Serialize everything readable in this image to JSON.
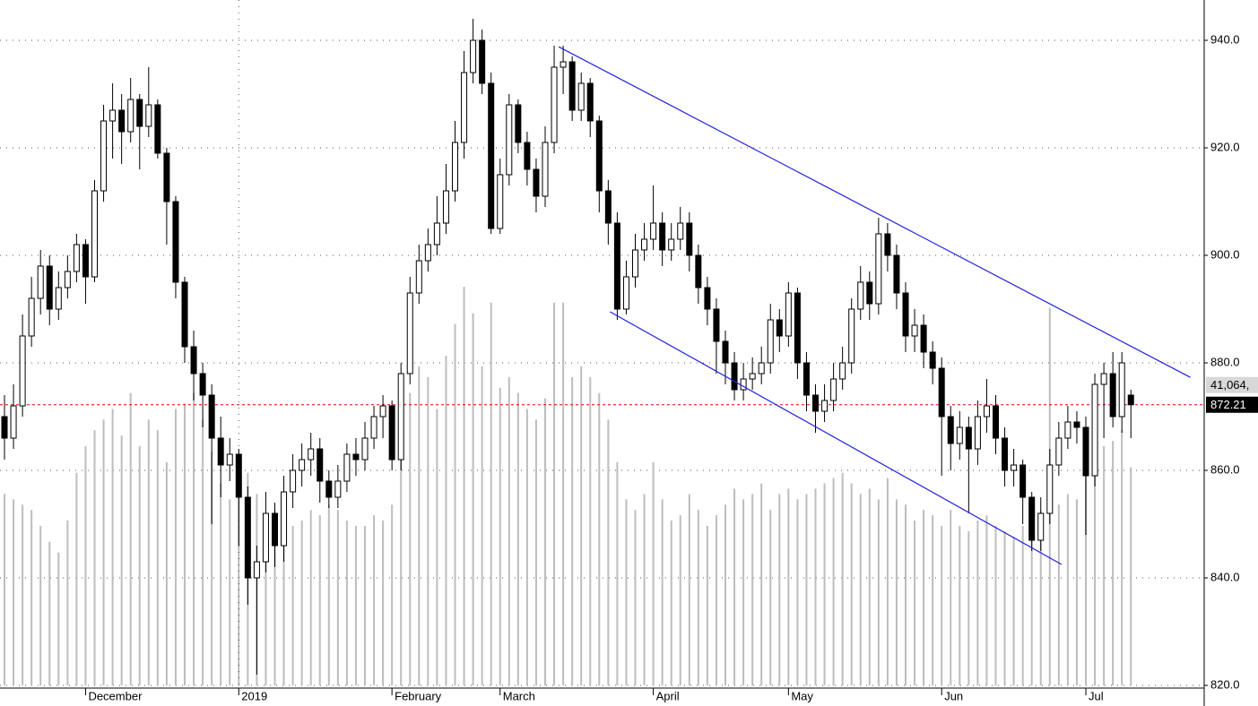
{
  "chart_data": {
    "type": "candlestick",
    "categories": [
      null,
      null,
      null,
      null,
      null,
      null,
      null,
      null,
      null,
      "December",
      null,
      null,
      null,
      null,
      null,
      null,
      null,
      null,
      null,
      null,
      null,
      null,
      null,
      null,
      null,
      null,
      "2019",
      null,
      null,
      null,
      null,
      null,
      null,
      null,
      null,
      null,
      null,
      null,
      null,
      null,
      null,
      null,
      null,
      "February",
      null,
      null,
      null,
      null,
      null,
      null,
      null,
      null,
      null,
      null,
      null,
      "March",
      null,
      null,
      null,
      null,
      null,
      null,
      null,
      null,
      null,
      null,
      null,
      null,
      null,
      null,
      null,
      null,
      "April",
      null,
      null,
      null,
      null,
      null,
      null,
      null,
      null,
      null,
      null,
      null,
      null,
      null,
      null,
      "May",
      null,
      null,
      null,
      null,
      null,
      null,
      null,
      null,
      null,
      null,
      null,
      null,
      null,
      null,
      null,
      null,
      "Jun",
      null,
      null,
      null,
      null,
      null,
      null,
      null,
      null,
      null,
      null,
      null,
      null,
      null,
      null,
      null,
      "Jul",
      null,
      null,
      null,
      null,
      null
    ],
    "open": [
      870,
      866,
      872,
      885,
      892,
      898,
      890,
      894,
      897,
      902,
      896,
      912,
      925,
      927,
      923,
      929,
      924,
      928,
      919,
      910,
      895,
      883,
      878,
      874,
      866,
      861,
      863,
      855,
      840,
      843,
      852,
      846,
      856,
      860,
      862,
      864,
      858,
      855,
      858,
      863,
      862,
      866,
      870,
      872,
      862,
      878,
      893,
      899,
      902,
      906,
      912,
      921,
      934,
      940,
      932,
      905,
      915,
      928,
      921,
      916,
      911,
      921,
      935,
      936,
      927,
      932,
      925,
      912,
      906,
      890,
      896,
      901,
      903,
      906,
      901,
      903,
      906,
      900,
      894,
      890,
      884,
      880,
      875,
      877,
      878,
      880,
      888,
      885,
      893,
      880,
      874,
      871,
      873,
      877,
      880,
      890,
      895,
      891,
      904,
      900,
      893,
      885,
      887,
      882,
      879,
      870,
      865,
      868,
      864,
      870,
      872,
      866,
      860,
      861,
      855,
      847,
      852,
      861,
      866,
      869,
      868,
      859,
      876,
      878,
      870,
      874
    ],
    "high": [
      874,
      876,
      889,
      896,
      901,
      900,
      897,
      900,
      904,
      903,
      914,
      928,
      932,
      930,
      933,
      930,
      935,
      929,
      920,
      911,
      896,
      886,
      880,
      876,
      870,
      866,
      864,
      857,
      846,
      856,
      854,
      859,
      863,
      865,
      867,
      866,
      860,
      861,
      865,
      866,
      869,
      872,
      874,
      873,
      880,
      896,
      902,
      905,
      911,
      917,
      925,
      938,
      944,
      942,
      934,
      918,
      930,
      929,
      923,
      918,
      924,
      939,
      939,
      937,
      934,
      933,
      926,
      914,
      908,
      899,
      904,
      906,
      913,
      908,
      906,
      909,
      908,
      902,
      896,
      892,
      886,
      882,
      880,
      881,
      883,
      891,
      890,
      895,
      894,
      882,
      876,
      876,
      880,
      883,
      892,
      898,
      897,
      907,
      906,
      902,
      895,
      890,
      889,
      884,
      881,
      872,
      871,
      870,
      873,
      877,
      874,
      868,
      864,
      862,
      856,
      855,
      864,
      869,
      872,
      871,
      870,
      878,
      880,
      882,
      882,
      875
    ],
    "low": [
      862,
      864,
      870,
      883,
      889,
      887,
      888,
      892,
      895,
      891,
      895,
      910,
      918,
      917,
      921,
      916,
      922,
      918,
      902,
      892,
      880,
      873,
      868,
      850,
      855,
      858,
      846,
      835,
      822,
      841,
      842,
      843,
      853,
      857,
      859,
      854,
      853,
      853,
      856,
      859,
      860,
      864,
      866,
      860,
      860,
      876,
      891,
      897,
      900,
      904,
      910,
      918,
      932,
      930,
      904,
      904,
      913,
      919,
      913,
      908,
      909,
      919,
      930,
      925,
      925,
      922,
      908,
      902,
      888,
      889,
      894,
      899,
      901,
      898,
      899,
      901,
      897,
      891,
      887,
      878,
      876,
      873,
      873,
      875,
      876,
      878,
      882,
      883,
      877,
      871,
      867,
      869,
      871,
      875,
      878,
      888,
      888,
      889,
      897,
      890,
      882,
      882,
      879,
      876,
      859,
      860,
      862,
      852,
      861,
      867,
      863,
      857,
      857,
      850,
      845,
      845,
      850,
      859,
      864,
      865,
      848,
      857,
      866,
      868,
      867,
      866
    ],
    "close": [
      866,
      872,
      885,
      892,
      898,
      890,
      894,
      897,
      902,
      896,
      912,
      925,
      927,
      923,
      929,
      924,
      928,
      919,
      910,
      895,
      883,
      878,
      874,
      866,
      861,
      863,
      855,
      840,
      843,
      852,
      846,
      856,
      860,
      862,
      864,
      858,
      855,
      858,
      863,
      862,
      866,
      870,
      872,
      862,
      878,
      893,
      899,
      902,
      906,
      912,
      921,
      934,
      940,
      932,
      905,
      915,
      928,
      921,
      916,
      911,
      921,
      935,
      936,
      927,
      932,
      925,
      912,
      906,
      890,
      896,
      901,
      903,
      906,
      901,
      903,
      906,
      900,
      894,
      890,
      884,
      880,
      875,
      877,
      878,
      880,
      888,
      885,
      893,
      880,
      874,
      871,
      873,
      877,
      880,
      890,
      895,
      891,
      904,
      900,
      893,
      885,
      887,
      882,
      879,
      870,
      865,
      868,
      864,
      870,
      872,
      866,
      860,
      861,
      855,
      847,
      852,
      861,
      866,
      869,
      868,
      859,
      876,
      878,
      870,
      880,
      872.21
    ],
    "up_color": "#ffffff",
    "down_color": "#000000",
    "volume": {
      "color": "#bdbdbd",
      "values": [
        36000,
        35000,
        34000,
        33000,
        30000,
        27000,
        25000,
        31000,
        40000,
        45000,
        48000,
        50000,
        52000,
        47000,
        55000,
        45000,
        50000,
        48000,
        42000,
        52000,
        53000,
        55000,
        50000,
        44000,
        38000,
        35000,
        42000,
        40000,
        36000,
        30000,
        33000,
        34000,
        30000,
        31000,
        33000,
        32000,
        34000,
        33000,
        31000,
        30000,
        30000,
        32000,
        31000,
        34000,
        50000,
        55000,
        60000,
        58000,
        52000,
        62000,
        68000,
        75000,
        70000,
        60000,
        72000,
        56000,
        58000,
        55000,
        52000,
        50000,
        54000,
        72000,
        72000,
        58000,
        60000,
        58000,
        55000,
        50000,
        42000,
        35000,
        33000,
        36000,
        42000,
        35000,
        31000,
        32000,
        36000,
        33000,
        30000,
        32000,
        34000,
        37000,
        35000,
        36000,
        38000,
        33000,
        36000,
        37000,
        35000,
        36000,
        37000,
        38000,
        39000,
        40000,
        38000,
        36000,
        37000,
        35000,
        39000,
        35000,
        34000,
        31000,
        33000,
        32000,
        30000,
        33000,
        30000,
        29000,
        31000,
        32000,
        30000,
        29000,
        28000,
        30000,
        32000,
        33000,
        71000,
        34000,
        36000,
        35000,
        42000,
        44000,
        45000,
        46000,
        48000,
        41064
      ]
    },
    "vlim": [
      0,
      75000
    ],
    "volume_label": {
      "value": 41064,
      "label": "41,064,"
    },
    "last_price": {
      "value": 872.21,
      "label": "872.21",
      "color": "#e00000"
    },
    "trendlines": [
      {
        "color": "#2020e0",
        "x": [
          61.5,
          131.6
        ],
        "y": [
          938.8,
          877.3
        ]
      },
      {
        "color": "#2020e0",
        "x": [
          67.2,
          117.3
        ],
        "y": [
          889.5,
          842.5
        ]
      }
    ],
    "ylim": [
      820,
      947.5
    ],
    "yticks": [
      {
        "value": 820,
        "label": "820.0"
      },
      {
        "value": 840,
        "label": "840.0"
      },
      {
        "value": 860,
        "label": "860.0"
      },
      {
        "value": 880,
        "label": "880.0"
      },
      {
        "value": 900,
        "label": "900.0"
      },
      {
        "value": 920,
        "label": "920.0"
      },
      {
        "value": 940,
        "label": "940.0"
      }
    ],
    "grid": true
  }
}
